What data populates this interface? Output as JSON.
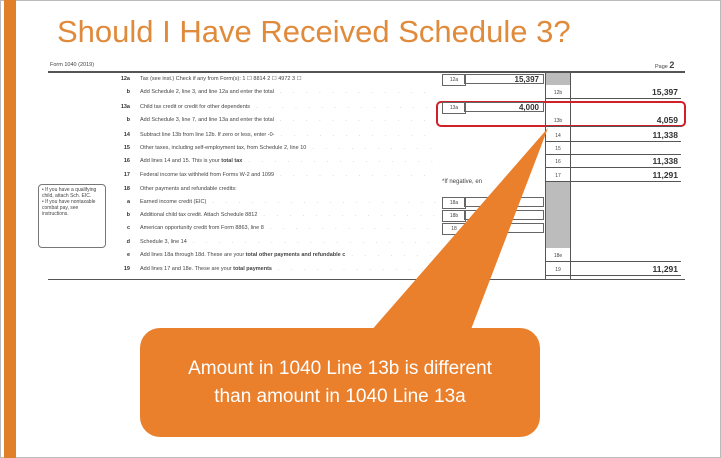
{
  "slide": {
    "title": "Should I Have Received Schedule 3?",
    "accent_color": "#e0812a",
    "callout_color": "#ea7f2c",
    "highlight_color": "#d0202a",
    "callout_lines": [
      "Amount in 1040 Line 13b is different",
      "than amount in 1040 Line 13a"
    ]
  },
  "form": {
    "header_left": "Form 1040 (2019)",
    "header_right_label": "Page",
    "header_right_num": "2",
    "rows": [
      {
        "num": "12a",
        "desc": "Tax (see inst.) Check if any from Form(s): 1 ☐ 8814  2 ☐ 4972  3 ☐",
        "bold": ""
      },
      {
        "num": "b",
        "desc": "Add Schedule 2, line 3, and line 12a and enter the total",
        "bold": ""
      },
      {
        "num": "13a",
        "desc": "Child tax credit or credit for other dependents",
        "bold": ""
      },
      {
        "num": "b",
        "desc": "Add Schedule 3, line 7, and line 13a and enter the total",
        "bold": ""
      },
      {
        "num": "14",
        "desc": "Subtract line 13b from line 12b. If zero or less, enter -0-",
        "bold": ""
      },
      {
        "num": "15",
        "desc": "Other taxes, including self-employment tax, from Schedule 2, line 10",
        "bold": ""
      },
      {
        "num": "16",
        "desc": "Add lines 14 and 15. This is your ",
        "bold": "total tax"
      },
      {
        "num": "17",
        "desc": "Federal income tax withheld from Forms W-2 and 1099",
        "bold": ""
      },
      {
        "num": "18",
        "desc": "Other payments and refundable credits:",
        "bold": ""
      },
      {
        "num": "a",
        "desc": "Earned income credit (EIC)",
        "bold": ""
      },
      {
        "num": "b",
        "desc": "Additional child tax credit. Attach Schedule 8812",
        "bold": ""
      },
      {
        "num": "c",
        "desc": "American opportunity credit from Form 8863, line 8",
        "bold": ""
      },
      {
        "num": "d",
        "desc": "Schedule 3, line 14",
        "bold": ""
      },
      {
        "num": "e",
        "desc": "Add lines 18a through 18d. These are your ",
        "bold": "total other payments and refundable c"
      },
      {
        "num": "19",
        "desc": "Add lines 17 and 18e. These are your ",
        "bold": "total payments"
      }
    ],
    "inner_cells": [
      {
        "label": "12a",
        "value": "15,397"
      },
      {
        "label": "13a",
        "value": "4,000"
      },
      {
        "label": "18a",
        "value": ""
      },
      {
        "label": "18b",
        "value": ""
      },
      {
        "label": "18",
        "value": ""
      }
    ],
    "right_cells": [
      {
        "label": "12b",
        "value": "15,397"
      },
      {
        "label": "13b",
        "value": "4,059"
      },
      {
        "label": "14",
        "value": "11,338"
      },
      {
        "label": "15",
        "value": ""
      },
      {
        "label": "16",
        "value": "11,338"
      },
      {
        "label": "17",
        "value": "11,291"
      },
      {
        "label": "18e",
        "value": ""
      },
      {
        "label": "19",
        "value": "11,291"
      }
    ],
    "negative_note": "*If negative, en",
    "side_note": [
      "• If you have a qualifying child, attach Sch. EIC.",
      "• If you have nontaxable combat pay, see instructions."
    ]
  }
}
